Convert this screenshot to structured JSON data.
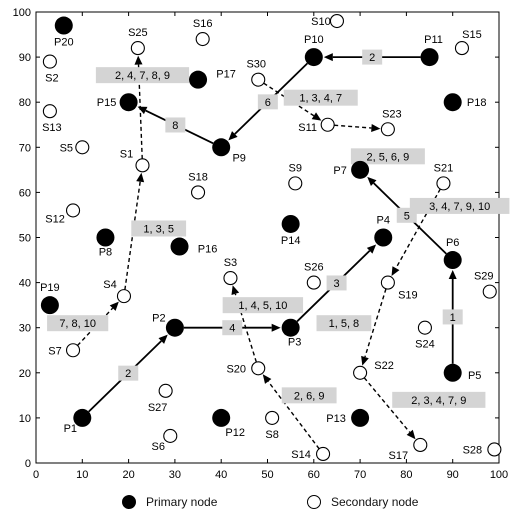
{
  "axes": {
    "x_ticks": [
      0,
      10,
      20,
      30,
      40,
      50,
      60,
      70,
      80,
      90,
      100
    ],
    "y_ticks": [
      0,
      10,
      20,
      30,
      40,
      50,
      60,
      70,
      80,
      90,
      100
    ],
    "xlim": [
      0,
      100
    ],
    "ylim": [
      0,
      100
    ]
  },
  "legend": {
    "primary_label": "Primary node",
    "secondary_label": "Secondary node",
    "primary_color": "#000000",
    "secondary_color": "#ffffff"
  },
  "primary_nodes": [
    {
      "id": "P1",
      "x": 10,
      "y": 10
    },
    {
      "id": "P2",
      "x": 30,
      "y": 30
    },
    {
      "id": "P3",
      "x": 55,
      "y": 30
    },
    {
      "id": "P4",
      "x": 75,
      "y": 50
    },
    {
      "id": "P5",
      "x": 90,
      "y": 20
    },
    {
      "id": "P6",
      "x": 90,
      "y": 45
    },
    {
      "id": "P7",
      "x": 70,
      "y": 65
    },
    {
      "id": "P8",
      "x": 15,
      "y": 50
    },
    {
      "id": "P9",
      "x": 40,
      "y": 70
    },
    {
      "id": "P10",
      "x": 60,
      "y": 90
    },
    {
      "id": "P11",
      "x": 85,
      "y": 90
    },
    {
      "id": "P12",
      "x": 40,
      "y": 10
    },
    {
      "id": "P13",
      "x": 70,
      "y": 10
    },
    {
      "id": "P14",
      "x": 55,
      "y": 53
    },
    {
      "id": "P15",
      "x": 20,
      "y": 80
    },
    {
      "id": "P16",
      "x": 31,
      "y": 48
    },
    {
      "id": "P17",
      "x": 35,
      "y": 85
    },
    {
      "id": "P18",
      "x": 90,
      "y": 80
    },
    {
      "id": "P19",
      "x": 3,
      "y": 35
    },
    {
      "id": "P20",
      "x": 6,
      "y": 97
    }
  ],
  "secondary_nodes": [
    {
      "id": "S1",
      "x": 23,
      "y": 66
    },
    {
      "id": "S2",
      "x": 3,
      "y": 89
    },
    {
      "id": "S3",
      "x": 42,
      "y": 41
    },
    {
      "id": "S4",
      "x": 19,
      "y": 37
    },
    {
      "id": "S5",
      "x": 10,
      "y": 70
    },
    {
      "id": "S6",
      "x": 29,
      "y": 6
    },
    {
      "id": "S7",
      "x": 8,
      "y": 25
    },
    {
      "id": "S8",
      "x": 51,
      "y": 10
    },
    {
      "id": "S9",
      "x": 56,
      "y": 62
    },
    {
      "id": "S10",
      "x": 65,
      "y": 98
    },
    {
      "id": "S11",
      "x": 63,
      "y": 75
    },
    {
      "id": "S12",
      "x": 8,
      "y": 56
    },
    {
      "id": "S13",
      "x": 3,
      "y": 78
    },
    {
      "id": "S14",
      "x": 62,
      "y": 2
    },
    {
      "id": "S15",
      "x": 92,
      "y": 92
    },
    {
      "id": "S16",
      "x": 36,
      "y": 94
    },
    {
      "id": "S17",
      "x": 83,
      "y": 4
    },
    {
      "id": "S18",
      "x": 35,
      "y": 60
    },
    {
      "id": "S19",
      "x": 76,
      "y": 40
    },
    {
      "id": "S20",
      "x": 48,
      "y": 21
    },
    {
      "id": "S21",
      "x": 88,
      "y": 62
    },
    {
      "id": "S22",
      "x": 70,
      "y": 20
    },
    {
      "id": "S23",
      "x": 76,
      "y": 74
    },
    {
      "id": "S24",
      "x": 84,
      "y": 30
    },
    {
      "id": "S25",
      "x": 22,
      "y": 92
    },
    {
      "id": "S26",
      "x": 60,
      "y": 40
    },
    {
      "id": "S27",
      "x": 28,
      "y": 16
    },
    {
      "id": "S28",
      "x": 99,
      "y": 3
    },
    {
      "id": "S29",
      "x": 98,
      "y": 38
    },
    {
      "id": "S30",
      "x": 48,
      "y": 85
    }
  ],
  "primary_routes": [
    {
      "from": "P1",
      "to": "P2",
      "label": "2"
    },
    {
      "from": "P2",
      "to": "P3",
      "label": "4"
    },
    {
      "from": "P3",
      "to": "P4",
      "label": "3"
    },
    {
      "from": "P5",
      "to": "P6",
      "label": "1"
    },
    {
      "from": "P6",
      "to": "P7",
      "label": "5"
    },
    {
      "from": "P9",
      "to": "P15",
      "label": "8"
    },
    {
      "from": "P10",
      "to": "P9",
      "label": "6"
    },
    {
      "from": "P11",
      "to": "P10",
      "label": "2"
    }
  ],
  "secondary_routes": [
    {
      "from": "S7",
      "to": "S4"
    },
    {
      "from": "S4",
      "to": "S1"
    },
    {
      "from": "S1",
      "to": "S25"
    },
    {
      "from": "S30",
      "to": "S11"
    },
    {
      "from": "S11",
      "to": "S23"
    },
    {
      "from": "S21",
      "to": "S19"
    },
    {
      "from": "S19",
      "to": "S22"
    },
    {
      "from": "S22",
      "to": "S17"
    },
    {
      "from": "S14",
      "to": "S20"
    },
    {
      "from": "S20",
      "to": "S3"
    }
  ],
  "group_labels": [
    {
      "text": "7, 8, 10",
      "x": 9,
      "y": 31
    },
    {
      "text": "1, 3, 5",
      "x": 26.5,
      "y": 52
    },
    {
      "text": "2, 4, 7, 8, 9",
      "x": 23,
      "y": 86
    },
    {
      "text": "1, 3, 4, 7",
      "x": 61.5,
      "y": 81
    },
    {
      "text": "2, 5, 6, 9",
      "x": 76,
      "y": 68
    },
    {
      "text": "3, 4, 7, 9, 10",
      "x": 91.5,
      "y": 57
    },
    {
      "text": "1, 5, 8",
      "x": 66.5,
      "y": 31
    },
    {
      "text": "1, 4, 5, 10",
      "x": 49,
      "y": 35
    },
    {
      "text": "2, 6, 9",
      "x": 59,
      "y": 15
    },
    {
      "text": "2, 3, 4, 7, 9",
      "x": 87,
      "y": 14
    }
  ]
}
